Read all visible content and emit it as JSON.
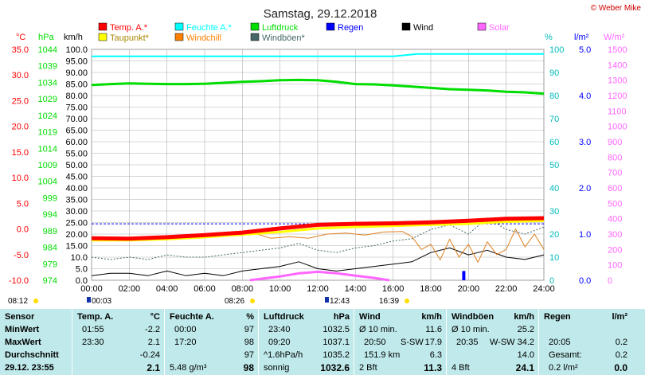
{
  "header": {
    "title": "Samstag, 29.12.2018",
    "copyright": "© Weber Mike",
    "unit_celsius": "°C",
    "unit_hpa": "hPa",
    "unit_kmh": "km/h",
    "unit_percent": "%",
    "unit_lm2": "l/m²",
    "unit_wm2": "W/m²"
  },
  "legend": [
    {
      "label": "Temp. A.*",
      "color": "#ff0000"
    },
    {
      "label": "Feuchte A.*",
      "color": "#00ffff"
    },
    {
      "label": "Luftdruck",
      "color": "#00dd00"
    },
    {
      "label": "Regen",
      "color": "#0000ff"
    },
    {
      "label": "Wind",
      "color": "#000000"
    },
    {
      "label": "Solar",
      "color": "#ff66ff"
    },
    {
      "label": "Taupunkt*",
      "color": "#ffff00"
    },
    {
      "label": "Windchill",
      "color": "#ff8000"
    },
    {
      "label": "Windböen*",
      "color": "#446666"
    }
  ],
  "colors": {
    "temp": "#ff0000",
    "dew": "#ffff00",
    "humidity": "#00ffff",
    "pressure": "#00dd00",
    "wind": "#000000",
    "gust": "#446666",
    "windchill": "#e08020",
    "solar": "#ff66ff",
    "rain": "#0000ff",
    "grid": "#b0b0b0",
    "refline": "#0000ff",
    "stats_bg": "#bfe9ea"
  },
  "chart_data": {
    "type": "line",
    "x_unit": "hours",
    "x_range": [
      0,
      24
    ],
    "x_ticks": [
      "00:00",
      "02:00",
      "04:00",
      "06:00",
      "08:00",
      "10:00",
      "12:00",
      "14:00",
      "16:00",
      "18:00",
      "20:00",
      "22:00",
      "24:00"
    ],
    "axes": {
      "celsius": {
        "range": [
          -10,
          35
        ],
        "ticks": [
          "35.0",
          "30.0",
          "25.0",
          "20.0",
          "15.0",
          "10.0",
          "5.0",
          "0.0",
          "-5.0",
          "-10.0"
        ]
      },
      "hpa": {
        "range": [
          974,
          1046.5
        ],
        "ticks": [
          "1044",
          "1039",
          "1034",
          "1029",
          "1024",
          "1019",
          "1014",
          "1009",
          "1004",
          "999",
          "994",
          "989",
          "984",
          "979",
          "974"
        ]
      },
      "kmh": {
        "range": [
          0,
          100
        ],
        "ticks": [
          "100.0",
          "95.00",
          "90.00",
          "85.00",
          "80.00",
          "75.00",
          "70.00",
          "65.00",
          "60.00",
          "55.00",
          "50.00",
          "45.00",
          "40.00",
          "35.00",
          "30.00",
          "25.00",
          "20.00",
          "15.00",
          "10.0",
          "5.0",
          "0.0"
        ]
      },
      "percent": {
        "range": [
          0,
          100
        ],
        "ticks": [
          "100",
          "90",
          "80",
          "70",
          "60",
          "50",
          "40",
          "30",
          "20",
          "10",
          "0"
        ]
      },
      "lm2": {
        "range": [
          0,
          5
        ],
        "ticks": [
          "5.0",
          "4.0",
          "3.0",
          "2.0",
          "1.0",
          "0.0"
        ]
      },
      "wm2": {
        "range": [
          0,
          1500
        ],
        "ticks": [
          "1500",
          "1400",
          "1300",
          "1200",
          "1100",
          "1000",
          "900",
          "800",
          "700",
          "600",
          "500",
          "400",
          "300",
          "200",
          "100",
          "0"
        ]
      }
    },
    "series": [
      {
        "name": "Temp. A.*",
        "axis": "celsius",
        "x": [
          0,
          2,
          4,
          6,
          8,
          10,
          12,
          14,
          16,
          18,
          20,
          22,
          24
        ],
        "y": [
          -1.8,
          -1.9,
          -1.6,
          -1.2,
          -0.7,
          0.1,
          0.8,
          1.0,
          1.1,
          1.3,
          1.6,
          2.0,
          2.1
        ]
      },
      {
        "name": "Taupunkt*",
        "axis": "celsius",
        "x": [
          0,
          2,
          4,
          6,
          8,
          10,
          12,
          14,
          16,
          18,
          20,
          22,
          24
        ],
        "y": [
          -2.2,
          -2.2,
          -2.0,
          -1.6,
          -1.1,
          -0.6,
          0.1,
          0.4,
          0.6,
          0.8,
          1.0,
          1.4,
          1.6
        ]
      },
      {
        "name": "Feuchte A.*",
        "axis": "percent",
        "x": [
          0,
          2,
          4,
          6,
          8,
          10,
          12,
          14,
          16,
          17.3,
          18,
          20,
          22,
          24
        ],
        "y": [
          97,
          97,
          97,
          97,
          97,
          97,
          97,
          97,
          97,
          98,
          98,
          98,
          98,
          98
        ]
      },
      {
        "name": "Luftdruck",
        "axis": "hpa",
        "x": [
          0,
          1,
          2,
          3,
          4,
          5,
          6,
          7,
          8,
          9,
          10,
          11,
          12,
          13,
          14,
          15,
          16,
          17,
          18,
          19,
          20,
          21,
          22,
          23,
          24
        ],
        "y": [
          1035.3,
          1035.6,
          1035.8,
          1035.7,
          1035.6,
          1035.6,
          1035.7,
          1036.0,
          1036.3,
          1036.5,
          1036.8,
          1036.9,
          1036.8,
          1036.3,
          1035.6,
          1035.5,
          1035.2,
          1034.8,
          1034.4,
          1034.0,
          1033.8,
          1033.6,
          1033.2,
          1033.0,
          1032.6
        ]
      },
      {
        "name": "Wind",
        "axis": "kmh",
        "x": [
          0,
          1,
          2,
          3,
          4,
          5,
          6,
          7,
          8,
          9,
          10,
          11,
          12,
          13,
          14,
          15,
          16,
          17,
          18,
          19,
          20,
          21,
          22,
          23,
          24
        ],
        "y": [
          2,
          3,
          3,
          2,
          4,
          2,
          3,
          2,
          4,
          5,
          6,
          8,
          5,
          4,
          5,
          6,
          7,
          8,
          12,
          14,
          11,
          13,
          10,
          9,
          11
        ]
      },
      {
        "name": "Windböen*",
        "axis": "kmh",
        "x": [
          0,
          1,
          2,
          3,
          4,
          5,
          6,
          7,
          8,
          9,
          10,
          11,
          12,
          13,
          14,
          15,
          16,
          17,
          18,
          19,
          20,
          21,
          22,
          23,
          24
        ],
        "y": [
          10,
          9,
          10,
          9,
          11,
          10,
          10,
          11,
          12,
          13,
          14,
          16,
          13,
          12,
          14,
          15,
          17,
          18,
          22,
          24,
          20,
          27,
          22,
          20,
          23
        ]
      },
      {
        "name": "Windchill",
        "axis": "celsius",
        "x": [
          8.8,
          9.5,
          10.5,
          11.5,
          12.5,
          13.5,
          14.5,
          15.5,
          16.5,
          17,
          17.5,
          18,
          18.5,
          19,
          19.5,
          20,
          20.5,
          21,
          21.5,
          22,
          22.5,
          23,
          23.5,
          24
        ],
        "y": [
          -1.0,
          -1.8,
          -1.5,
          -1.8,
          -1.0,
          -0.8,
          -1.2,
          -0.6,
          -0.5,
          -1.5,
          -4.0,
          -3.0,
          -6.0,
          -2.0,
          -5.5,
          -3.0,
          -6.5,
          -2.5,
          -5.0,
          -4.0,
          0.0,
          -3.5,
          -1.0,
          -4.0
        ]
      },
      {
        "name": "Solar",
        "axis": "wm2",
        "x": [
          8.4,
          9,
          10,
          11,
          12,
          13,
          14,
          15,
          15.8
        ],
        "y": [
          0,
          10,
          25,
          45,
          55,
          45,
          30,
          15,
          0
        ]
      },
      {
        "name": "Regen",
        "axis": "lm2",
        "x": [
          19.75,
          20.08
        ],
        "y": [
          0.2,
          0.2
        ]
      }
    ],
    "reference_line": {
      "axis": "celsius",
      "value": 1.0
    },
    "events": [
      {
        "label": "08:12",
        "icon": "sun"
      },
      {
        "label": "00:03",
        "icon": "moon"
      },
      {
        "label": "08:26",
        "icon": "sun"
      },
      {
        "label": "12:43",
        "icon": "moon"
      },
      {
        "label": "16:39",
        "icon": "sun"
      }
    ]
  },
  "stats": {
    "col_sensor": {
      "title": "Sensor",
      "rows": [
        "MinWert",
        "MaxWert",
        "Durchschnitt",
        "29.12. 23:55"
      ]
    },
    "col_temp": {
      "title": "Temp. A.",
      "unit": "°C",
      "times": [
        "01:55",
        "23:30",
        "",
        ""
      ],
      "values": [
        "-2.2",
        "2.1",
        "-0.24",
        "2.1"
      ]
    },
    "col_hum": {
      "title": "Feuchte A.",
      "unit": "%",
      "times": [
        "00:00",
        "17:20",
        "",
        "5.48 g/m³"
      ],
      "values": [
        "97",
        "98",
        "97",
        "98"
      ]
    },
    "col_press": {
      "title": "Luftdruck",
      "unit": "hPa",
      "times": [
        "23:40",
        "09:20",
        "^1.6hPa/h",
        "sonnig"
      ],
      "values": [
        "1032.5",
        "1037.1",
        "1035.2",
        "1032.6"
      ]
    },
    "col_wind": {
      "title": "Wind",
      "unit": "km/h",
      "r1": [
        "Ø 10 min.",
        "",
        "11.6"
      ],
      "r2": [
        "20:50",
        "S-SW",
        "17.9"
      ],
      "r3": [
        "151.9 km",
        "",
        "6.3"
      ],
      "r4": [
        "2 Bft",
        "",
        "11.3"
      ]
    },
    "col_gust": {
      "title": "Windböen",
      "unit": "km/h",
      "r1": [
        "Ø 10 min.",
        "",
        "25.2"
      ],
      "r2": [
        "20:35",
        "W-SW",
        "34.2"
      ],
      "r3": [
        "",
        "",
        "14.0"
      ],
      "r4": [
        "4 Bft",
        "",
        "24.1"
      ]
    },
    "col_rain": {
      "title": "Regen",
      "unit": "l/m²",
      "r1": [
        "",
        "",
        ""
      ],
      "r2": [
        "20:05",
        "",
        "0.2"
      ],
      "r3": [
        "Gesamt:",
        "",
        "0.2"
      ],
      "r4": [
        "0.2 l/m²",
        "",
        "0.0"
      ]
    }
  }
}
